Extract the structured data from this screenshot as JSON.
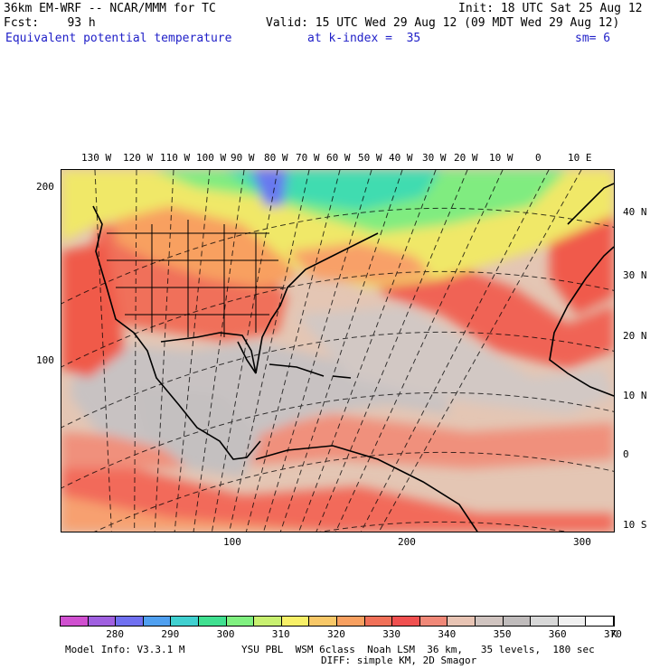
{
  "header": {
    "model": "36km EM-WRF -- NCAR/MMM for TC",
    "init": "Init: 18 UTC Sat 25 Aug 12",
    "fcst": "Fcst:    93 h",
    "valid": "Valid: 15 UTC Wed 29 Aug 12 (09 MDT Wed 29 Aug 12)",
    "field": "Equivalent potential temperature",
    "level": "at k-index =  35",
    "smooth": "sm= 6"
  },
  "map": {
    "top_lon_labels": [
      "130 W",
      "120 W",
      "110 W",
      "100 W",
      "90 W",
      "80 W",
      "70 W",
      "60 W",
      "50 W",
      "40 W",
      "30 W",
      "20 W",
      "10 W",
      "0",
      "10 E"
    ],
    "right_lat_labels": [
      "40 N",
      "30 N",
      "20 N",
      "10 N",
      "0",
      "10 S"
    ],
    "left_grid_labels": [
      "200",
      "100"
    ],
    "bottom_grid_labels": [
      "100",
      "200",
      "300"
    ],
    "colors": {
      "ocean_tropics": "#e0c8b4",
      "gray": "#c8c4c4",
      "salmon": "#f08070",
      "red": "#f05050",
      "orange": "#f8a868",
      "yellow": "#f8e868",
      "green": "#80f080",
      "teal": "#40e0b0",
      "blue": "#6070f0"
    }
  },
  "colorbar": {
    "labels": [
      "280",
      "290",
      "300",
      "310",
      "320",
      "330",
      "340",
      "350",
      "360",
      "370",
      "K"
    ],
    "colors": [
      "#d050d0",
      "#a060e0",
      "#7070f0",
      "#50a0f0",
      "#40d0d0",
      "#40e090",
      "#80f080",
      "#c8f070",
      "#f8f068",
      "#f8c868",
      "#f8a060",
      "#f07058",
      "#f05050",
      "#f08878",
      "#e8c4b4",
      "#d0c4c0",
      "#c0bcbc",
      "#d8d8d8",
      "#f0f0f0",
      "#ffffff"
    ]
  },
  "footer": {
    "model_info": "Model Info: V3.3.1 M",
    "physics": "YSU PBL  WSM 6class  Noah LSM  36 km,   35 levels,  180 sec",
    "diff": "DIFF: simple KM, 2D Smagor"
  }
}
